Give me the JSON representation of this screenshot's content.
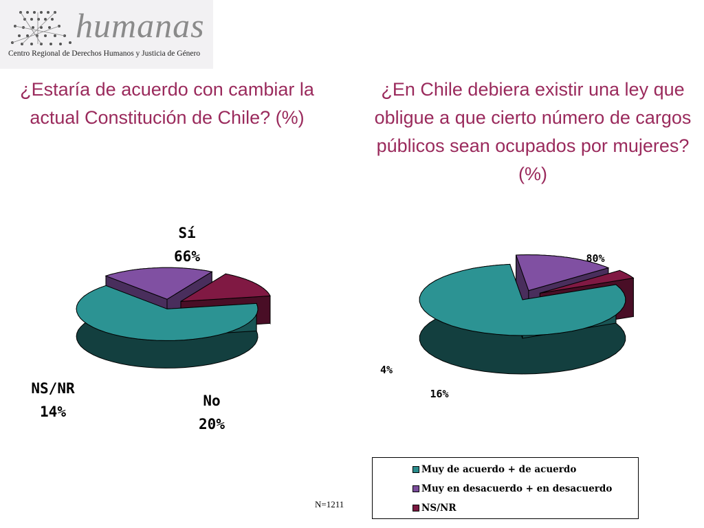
{
  "logo": {
    "name": "humanas",
    "subtitle": "Centro Regional de Derechos Humanos y Justicia de Género"
  },
  "colors": {
    "teal": "#2a8c8c",
    "purple": "#7a4c9a",
    "maroon": "#7a1840",
    "title": "#9a2a5c"
  },
  "chart_data": [
    {
      "type": "pie",
      "title": "¿Estaría de acuerdo con cambiar la actual Constitución de Chile? (%)",
      "slices": [
        {
          "name": "Sí",
          "value": 66,
          "label": "66%"
        },
        {
          "name": "No",
          "value": 20,
          "label": "20%"
        },
        {
          "name": "NS/NR",
          "value": 14,
          "label": "14%"
        }
      ]
    },
    {
      "type": "pie",
      "title": "¿En Chile debiera existir una ley que obligue a que cierto número de cargos públicos sean ocupados por mujeres? (%)",
      "slices": [
        {
          "name": "Muy de acuerdo + de acuerdo",
          "value": 80,
          "label": "80%"
        },
        {
          "name": "Muy en desacuerdo + en desacuerdo",
          "value": 16,
          "label": "16%"
        },
        {
          "name": "NS/NR",
          "value": 4,
          "label": "4%"
        }
      ],
      "legend": "bottom-right"
    }
  ],
  "footnote": "N=1211"
}
